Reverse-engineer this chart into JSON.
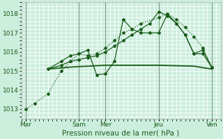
{
  "title": "",
  "xlabel": "Pression niveau de la mer( hPa )",
  "bg_color": "#cceedd",
  "grid_color": "#ffffff",
  "line_color": "#1a5c1a",
  "ylim": [
    1012.5,
    1018.6
  ],
  "yticks": [
    1013,
    1014,
    1015,
    1016,
    1017,
    1018
  ],
  "xtick_labels": [
    "Mar",
    "Sam",
    "Mer",
    "Jeu",
    "Ven"
  ],
  "xtick_positions": [
    0,
    12,
    18,
    30,
    42
  ],
  "xlim": [
    -1,
    44
  ],
  "series": [
    {
      "x": [
        0,
        2,
        5,
        8,
        10,
        12,
        14,
        16,
        18,
        20,
        22,
        24,
        26,
        30,
        32,
        34,
        36,
        38,
        40,
        42
      ],
      "y": [
        1013.0,
        1013.3,
        1013.8,
        1015.0,
        1015.5,
        1015.9,
        1015.8,
        1015.9,
        1016.2,
        1016.6,
        1017.0,
        1017.2,
        1017.5,
        1017.8,
        1018.0,
        1017.7,
        1017.3,
        1016.8,
        1016.2,
        1015.2
      ],
      "marker": "D",
      "ms": 2.0,
      "lw": 0.9,
      "ls": "dotted"
    },
    {
      "x": [
        5,
        8,
        10,
        12,
        14,
        16,
        18,
        20,
        22,
        24,
        26,
        28,
        30,
        32,
        34,
        36,
        38,
        40,
        42
      ],
      "y": [
        1015.1,
        1015.5,
        1015.8,
        1015.9,
        1016.1,
        1014.8,
        1014.85,
        1015.5,
        1017.7,
        1017.2,
        1017.0,
        1017.0,
        1017.0,
        1018.0,
        1017.5,
        1016.9,
        1015.9,
        1015.9,
        1015.2
      ],
      "marker": "D",
      "ms": 2.0,
      "lw": 0.9,
      "ls": "solid"
    },
    {
      "x": [
        5,
        10,
        18,
        26,
        30,
        38,
        42
      ],
      "y": [
        1015.1,
        1015.2,
        1015.3,
        1015.3,
        1015.3,
        1015.25,
        1015.1
      ],
      "marker": null,
      "ms": 0,
      "lw": 1.3,
      "ls": "solid"
    },
    {
      "x": [
        5,
        8,
        10,
        12,
        14,
        16,
        18,
        20,
        22,
        24,
        26,
        28,
        30,
        32,
        34,
        36,
        38,
        40,
        42
      ],
      "y": [
        1015.1,
        1015.3,
        1015.5,
        1015.6,
        1015.7,
        1015.8,
        1016.0,
        1016.3,
        1016.6,
        1016.9,
        1017.2,
        1017.5,
        1018.1,
        1017.9,
        1017.5,
        1016.9,
        1015.9,
        1016.1,
        1015.2
      ],
      "marker": "D",
      "ms": 2.0,
      "lw": 0.9,
      "ls": "solid"
    }
  ],
  "vlines_x": [
    0,
    12,
    18,
    30,
    42
  ],
  "vline_color": "#557755",
  "xlabel_fontsize": 7.5,
  "tick_fontsize": 6.5
}
